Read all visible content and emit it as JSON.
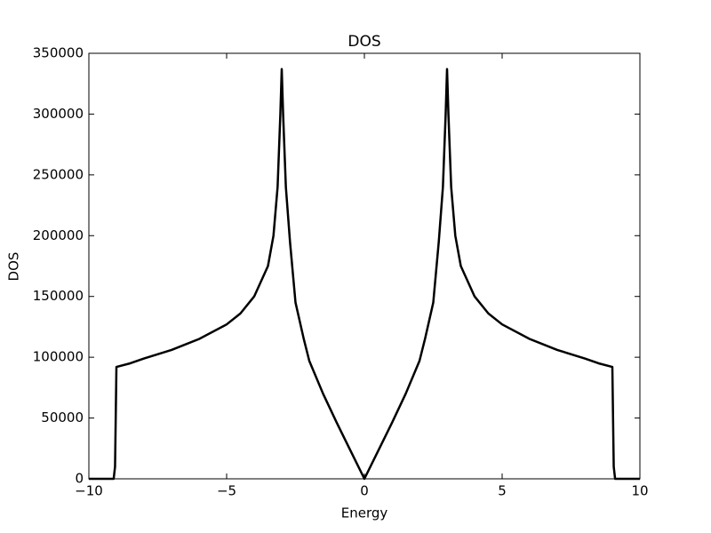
{
  "chart_data": {
    "type": "line",
    "title": "DOS",
    "x_label": "Energy",
    "y_label": "DOS",
    "x": [
      -10,
      -9.1,
      -9.05,
      -9.0,
      -8.5,
      -8,
      -7,
      -6,
      -5,
      -4.5,
      -4,
      -3.5,
      -3.3,
      -3.15,
      -3.05,
      -3.0,
      -2.95,
      -2.85,
      -2.7,
      -2.5,
      -2.2,
      -2,
      -1.5,
      -1,
      -0.5,
      0,
      0.5,
      1,
      1.5,
      2,
      2.2,
      2.5,
      2.7,
      2.85,
      2.95,
      3.0,
      3.05,
      3.15,
      3.3,
      3.5,
      4,
      4.5,
      5,
      6,
      7,
      8,
      8.5,
      9.0,
      9.05,
      9.1,
      10
    ],
    "series": [
      {
        "name": "DOS",
        "color": "#000000",
        "values": [
          0,
          0,
          10000,
          92000,
          95000,
          99000,
          106000,
          115000,
          127000,
          136000,
          150000,
          175000,
          200000,
          240000,
          300000,
          337000,
          300000,
          240000,
          195000,
          145000,
          115000,
          97000,
          70000,
          46000,
          23000,
          0,
          23000,
          46000,
          70000,
          97000,
          115000,
          145000,
          195000,
          240000,
          300000,
          337000,
          300000,
          240000,
          200000,
          175000,
          150000,
          136000,
          127000,
          115000,
          106000,
          99000,
          95000,
          92000,
          10000,
          0,
          0
        ]
      }
    ],
    "xlim": [
      -10,
      10
    ],
    "xticks": [
      {
        "value": -10,
        "label": "−10"
      },
      {
        "value": -5,
        "label": "−5"
      },
      0,
      5,
      10
    ],
    "ylim": [
      0,
      350000
    ],
    "yticks": [
      0,
      50000,
      100000,
      150000,
      200000,
      250000,
      300000,
      350000
    ]
  }
}
